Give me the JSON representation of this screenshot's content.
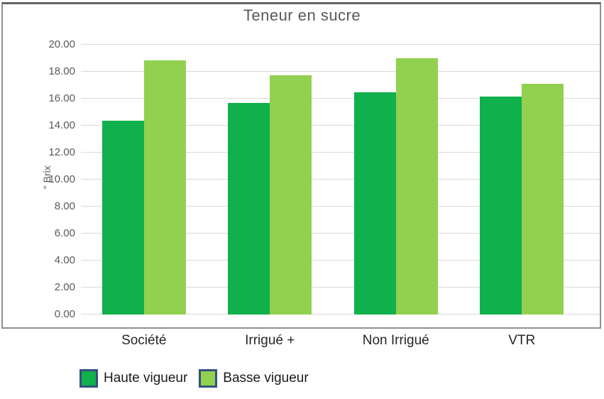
{
  "chart_data": {
    "type": "bar",
    "title": "Teneur en sucre",
    "categories": [
      "Société",
      "Irrigué +",
      "Non Irrigué",
      "VTR"
    ],
    "series": [
      {
        "name": "Haute vigueur",
        "color": "#10b04c",
        "values": [
          14.35,
          15.7,
          16.5,
          16.15
        ]
      },
      {
        "name": "Basse vigueur",
        "color": "#92d050",
        "values": [
          18.85,
          17.75,
          19.0,
          17.1
        ]
      }
    ],
    "xlabel": "",
    "ylabel": "° Brix",
    "ylim": [
      0,
      20
    ],
    "ytick_step": 2,
    "ytick_decimals": 2,
    "grid": true,
    "legend_position": "bottom-left",
    "colors": {
      "title_text": "#595959",
      "axis_text": "#595959",
      "category_text": "#262626",
      "gridline": "#d9d9d9",
      "frame_border": "#8f8f8f",
      "legend_swatch_border": "#35507e"
    }
  }
}
